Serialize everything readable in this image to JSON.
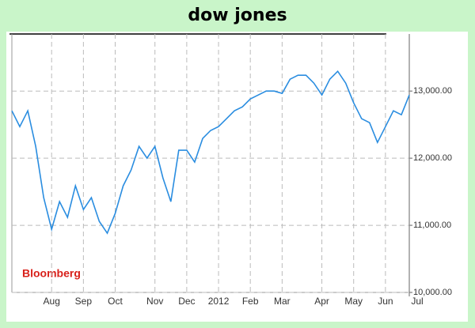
{
  "chart_data": {
    "type": "line",
    "title": "dow jones",
    "watermark": "Bloomberg",
    "categories": [
      null,
      null,
      null,
      null,
      null,
      "Aug",
      null,
      null,
      null,
      "Sep",
      null,
      null,
      null,
      "Oct",
      null,
      null,
      null,
      null,
      "Nov",
      null,
      null,
      null,
      "Dec",
      null,
      null,
      null,
      "2012",
      null,
      null,
      null,
      "Feb",
      null,
      null,
      null,
      "Mar",
      null,
      null,
      null,
      null,
      "Apr",
      null,
      null,
      null,
      "May",
      null,
      null,
      null,
      "Jun",
      null,
      null,
      null,
      "Jul"
    ],
    "series": [
      {
        "name": "dow jones",
        "color": "#2a8de0",
        "values": [
          12706,
          12470,
          12706,
          12176,
          11412,
          10941,
          11353,
          11118,
          11588,
          11235,
          11412,
          11059,
          10882,
          11176,
          11588,
          11824,
          12176,
          12000,
          12176,
          11706,
          11353,
          12118,
          12118,
          11941,
          12294,
          12412,
          12470,
          12588,
          12706,
          12765,
          12882,
          12941,
          13000,
          13000,
          12965,
          13176,
          13235,
          13235,
          13118,
          12941,
          13176,
          13294,
          13118,
          12824,
          12588,
          12529,
          12235,
          12470,
          12706,
          12647,
          12941,
          null
        ]
      }
    ],
    "ylim": [
      10000,
      13850
    ],
    "yticks": [
      {
        "value": 10000,
        "label": "10,000.00"
      },
      {
        "value": 11000,
        "label": "11,000.00"
      },
      {
        "value": 12000,
        "label": "12,000.00"
      },
      {
        "value": 13000,
        "label": "13,000.00"
      }
    ],
    "grid": true,
    "y_axis_side": "right"
  }
}
